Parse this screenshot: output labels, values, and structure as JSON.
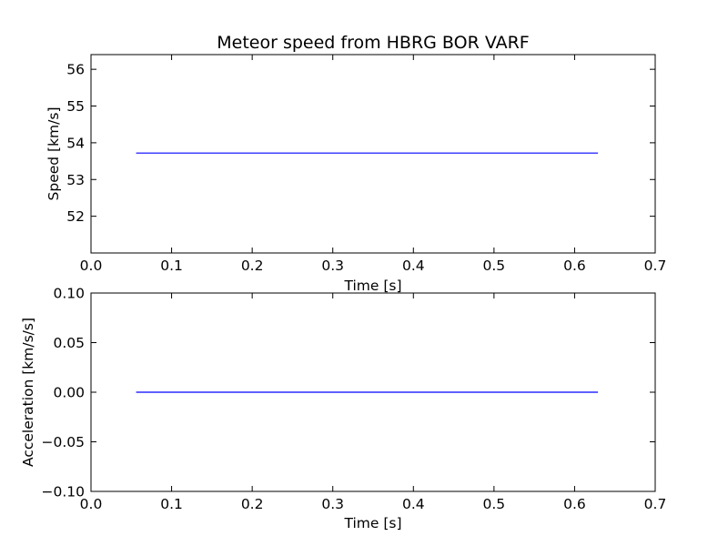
{
  "chart_data": [
    {
      "type": "line",
      "title": "Meteor speed from  HBRG BOR VARF",
      "xlabel": "Time [s]",
      "ylabel": "Speed [km/s]",
      "xlim": [
        0.0,
        0.7
      ],
      "ylim": [
        51.0,
        56.4
      ],
      "xticks": [
        0.0,
        0.1,
        0.2,
        0.3,
        0.4,
        0.5,
        0.6,
        0.7
      ],
      "xtick_labels": [
        "0.0",
        "0.1",
        "0.2",
        "0.3",
        "0.4",
        "0.5",
        "0.6",
        "0.7"
      ],
      "yticks": [
        52,
        53,
        54,
        55,
        56
      ],
      "ytick_labels": [
        "52",
        "53",
        "54",
        "55",
        "56"
      ],
      "grid": false,
      "series": [
        {
          "color": "#0000ff",
          "x": [
            0.056,
            0.629
          ],
          "y": [
            53.72,
            53.72
          ]
        }
      ]
    },
    {
      "type": "line",
      "title": "",
      "xlabel": "Time [s]",
      "ylabel": "Acceleration [km/s/s]",
      "xlim": [
        0.0,
        0.7
      ],
      "ylim": [
        -0.1,
        0.1
      ],
      "xticks": [
        0.0,
        0.1,
        0.2,
        0.3,
        0.4,
        0.5,
        0.6,
        0.7
      ],
      "xtick_labels": [
        "0.0",
        "0.1",
        "0.2",
        "0.3",
        "0.4",
        "0.5",
        "0.6",
        "0.7"
      ],
      "yticks": [
        -0.1,
        -0.05,
        0.0,
        0.05,
        0.1
      ],
      "ytick_labels": [
        "−0.10",
        "−0.05",
        "0.00",
        "0.05",
        "0.10"
      ],
      "grid": false,
      "series": [
        {
          "color": "#0000ff",
          "x": [
            0.056,
            0.629
          ],
          "y": [
            0.0,
            0.0
          ]
        }
      ]
    }
  ]
}
